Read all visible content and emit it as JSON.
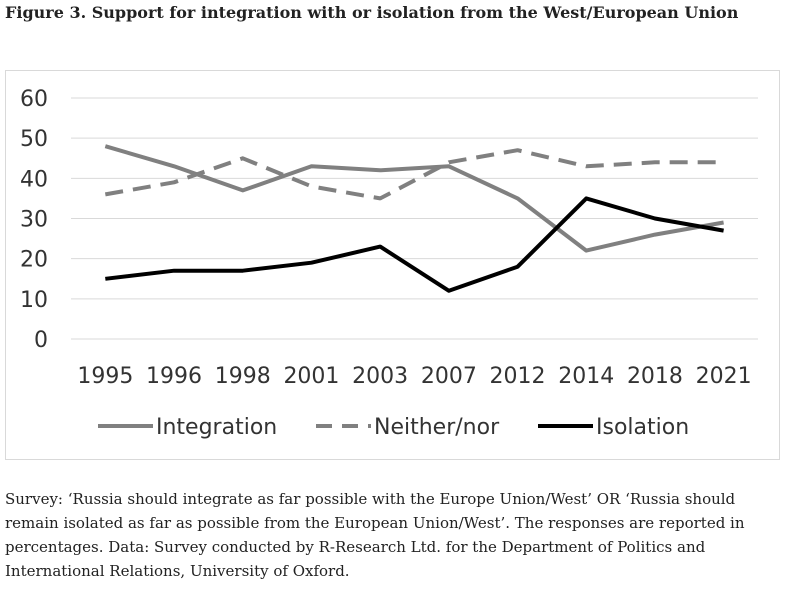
{
  "figure": {
    "title": "Figure 3. Support for integration with or isolation from the West/European Union",
    "caption": "Survey: ‘Russia should integrate as far possible with the Europe Union/West’ OR ‘Russia should remain isolated as far as possible from the European Union/West’. The responses are reported in percentages. Data: Survey conducted by R-Research Ltd. for the Department of Politics and International Relations, University of Oxford."
  },
  "chart_data": {
    "type": "line",
    "title": "",
    "xlabel": "",
    "ylabel": "",
    "categories": [
      "1995",
      "1996",
      "1998",
      "2001",
      "2003",
      "2007",
      "2012",
      "2014",
      "2018",
      "2021"
    ],
    "ylim": [
      0,
      60
    ],
    "yticks": [
      0,
      10,
      20,
      30,
      40,
      50,
      60
    ],
    "grid": true,
    "legend_position": "bottom",
    "series": [
      {
        "name": "Integration",
        "values": [
          48,
          43,
          37,
          43,
          42,
          43,
          35,
          22,
          26,
          29
        ],
        "color": "#808080",
        "style": "solid"
      },
      {
        "name": "Neither/nor",
        "values": [
          36,
          39,
          45,
          38,
          35,
          44,
          47,
          43,
          44,
          44
        ],
        "color": "#808080",
        "style": "dashed"
      },
      {
        "name": "Isolation",
        "values": [
          15,
          17,
          17,
          19,
          23,
          12,
          18,
          35,
          30,
          27
        ],
        "color": "#000000",
        "style": "solid"
      }
    ]
  }
}
